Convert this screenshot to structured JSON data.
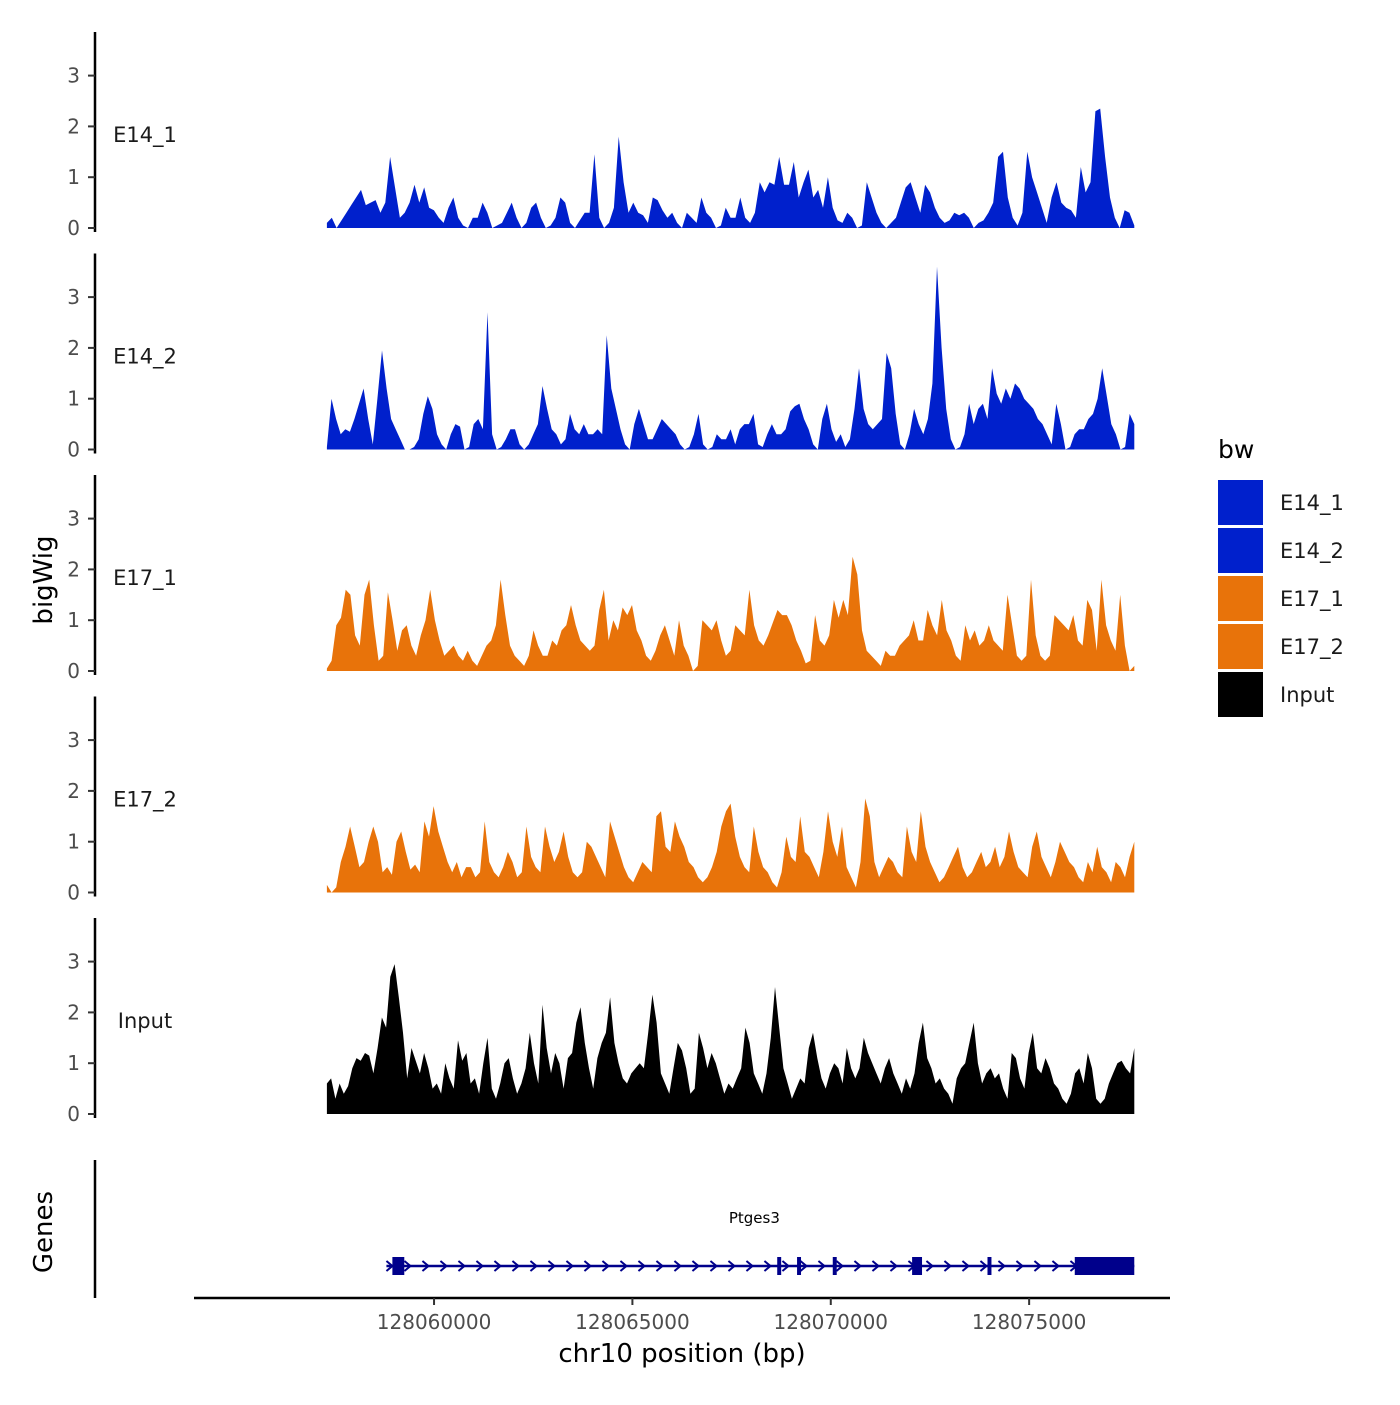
{
  "chart_data": {
    "type": "area",
    "title": "",
    "xlabel": "chr10 position (bp)",
    "ylabel": "bigWig",
    "genes_label": "Genes",
    "xlim": [
      128054000,
      128078500
    ],
    "ylim": [
      0,
      3.8
    ],
    "y_ticks": [
      "0",
      "1",
      "2",
      "3"
    ],
    "x_ticks": [
      {
        "value": 128060000,
        "label": "128060000"
      },
      {
        "value": 128065000,
        "label": "128065000"
      },
      {
        "value": 128070000,
        "label": "128070000"
      },
      {
        "value": 128075000,
        "label": "128075000"
      }
    ],
    "x_start": 128057300,
    "x_end": 128077650,
    "legend": {
      "title": "bw",
      "entries": [
        {
          "label": "E14_1",
          "color": "#0020cc"
        },
        {
          "label": "E14_2",
          "color": "#0020cc"
        },
        {
          "label": "E17_1",
          "color": "#e8730a"
        },
        {
          "label": "E17_2",
          "color": "#e8730a"
        },
        {
          "label": "Input",
          "color": "#000000"
        }
      ]
    },
    "series": [
      {
        "name": "E14_1",
        "color": "#0020cc",
        "values": [
          0.1,
          0.2,
          0,
          0.15,
          0.3,
          0.45,
          0.6,
          0.75,
          0.45,
          0.5,
          0.55,
          0.3,
          0.5,
          1.4,
          0.8,
          0.2,
          0.3,
          0.5,
          0.85,
          0.5,
          0.8,
          0.4,
          0.35,
          0.2,
          0.1,
          0.4,
          0.6,
          0.2,
          0.05,
          0,
          0.2,
          0.2,
          0.5,
          0.3,
          0,
          0.05,
          0.1,
          0.3,
          0.5,
          0.2,
          0,
          0.1,
          0.4,
          0.5,
          0.2,
          0,
          0.05,
          0.2,
          0.6,
          0.5,
          0.1,
          0,
          0.15,
          0.3,
          0.3,
          1.45,
          0.2,
          0,
          0.1,
          0.4,
          1.8,
          0.9,
          0.3,
          0.5,
          0.3,
          0.25,
          0.1,
          0.6,
          0.55,
          0.35,
          0.2,
          0.3,
          0.1,
          0,
          0.3,
          0.2,
          0.1,
          0.6,
          0.3,
          0.2,
          0,
          0.05,
          0.4,
          0.2,
          0.2,
          0.6,
          0.2,
          0.1,
          0.3,
          0.9,
          0.7,
          0.9,
          0.85,
          1.4,
          0.85,
          0.85,
          1.3,
          0.6,
          0.9,
          1.15,
          0.6,
          0.75,
          0.4,
          1.0,
          0.4,
          0.15,
          0.1,
          0.3,
          0.2,
          0,
          0.05,
          0.9,
          0.6,
          0.3,
          0.1,
          0,
          0.1,
          0.2,
          0.5,
          0.8,
          0.9,
          0.6,
          0.3,
          0.85,
          0.7,
          0.4,
          0.2,
          0.1,
          0.15,
          0.3,
          0.25,
          0.3,
          0.2,
          0,
          0.1,
          0.15,
          0.3,
          0.5,
          1.4,
          1.5,
          0.6,
          0.2,
          0.05,
          0.3,
          1.5,
          1.0,
          0.7,
          0.4,
          0.1,
          0.6,
          0.9,
          0.5,
          0.4,
          0.35,
          0.2,
          1.2,
          0.7,
          0.9,
          2.3,
          2.35,
          1.4,
          0.6,
          0.2,
          0,
          0.35,
          0.3,
          0.05
        ]
      },
      {
        "name": "E14_2",
        "color": "#0020cc",
        "values": [
          0.05,
          1.0,
          0.6,
          0.3,
          0.4,
          0.35,
          0.6,
          0.9,
          1.2,
          0.6,
          0.1,
          1.0,
          1.95,
          1.2,
          0.6,
          0.4,
          0.2,
          0,
          0,
          0.05,
          0.2,
          0.7,
          1.05,
          0.8,
          0.3,
          0.1,
          0,
          0.3,
          0.5,
          0.45,
          0,
          0.05,
          0.5,
          0.6,
          0.4,
          2.7,
          0.3,
          0,
          0.05,
          0.2,
          0.4,
          0.4,
          0.1,
          0,
          0.1,
          0.3,
          0.5,
          1.25,
          0.8,
          0.4,
          0.3,
          0.1,
          0.2,
          0.7,
          0.4,
          0.3,
          0.5,
          0.3,
          0.3,
          0.4,
          0.3,
          2.25,
          1.2,
          0.8,
          0.4,
          0.1,
          0,
          0.5,
          0.8,
          0.5,
          0.2,
          0.2,
          0.4,
          0.6,
          0.5,
          0.4,
          0.3,
          0.1,
          0,
          0.05,
          0.3,
          0.7,
          0.1,
          0,
          0.05,
          0.3,
          0.2,
          0.2,
          0.4,
          0.1,
          0.4,
          0.5,
          0.5,
          0.7,
          0.1,
          0.05,
          0.3,
          0.5,
          0.3,
          0.3,
          0.4,
          0.75,
          0.85,
          0.9,
          0.6,
          0.4,
          0.1,
          0,
          0.6,
          0.9,
          0.4,
          0.15,
          0.3,
          0.05,
          0.2,
          0.8,
          1.6,
          0.8,
          0.5,
          0.4,
          0.5,
          0.6,
          1.9,
          1.6,
          0.7,
          0.1,
          0,
          0.3,
          0.8,
          0.5,
          0.3,
          0.6,
          1.3,
          3.6,
          2.0,
          0.8,
          0.2,
          0,
          0.05,
          0.3,
          0.9,
          0.5,
          0.8,
          0.9,
          0.6,
          1.6,
          1.1,
          0.9,
          1.2,
          1.0,
          1.3,
          1.2,
          1.0,
          0.9,
          0.8,
          0.6,
          0.5,
          0.3,
          0.1,
          0.9,
          0.5,
          0,
          0.05,
          0.3,
          0.4,
          0.4,
          0.6,
          0.7,
          1.0,
          1.6,
          1.05,
          0.5,
          0.3,
          0,
          0.05,
          0.7,
          0.5
        ]
      },
      {
        "name": "E17_1",
        "color": "#e8730a",
        "values": [
          0.05,
          0.2,
          0.9,
          1.05,
          1.6,
          1.5,
          0.7,
          0.5,
          1.5,
          1.8,
          0.9,
          0.2,
          0.3,
          1.55,
          1.0,
          0.4,
          0.8,
          0.9,
          0.5,
          0.3,
          0.7,
          1.0,
          1.6,
          1.0,
          0.6,
          0.3,
          0.4,
          0.5,
          0.3,
          0.2,
          0.4,
          0.2,
          0.1,
          0.3,
          0.5,
          0.6,
          0.9,
          1.8,
          1.1,
          0.5,
          0.3,
          0.2,
          0.1,
          0.3,
          0.8,
          0.5,
          0.3,
          0.3,
          0.6,
          0.5,
          0.8,
          0.9,
          1.3,
          0.9,
          0.6,
          0.5,
          0.4,
          0.5,
          1.2,
          1.6,
          0.6,
          1.0,
          0.8,
          1.25,
          1.1,
          1.3,
          0.8,
          0.6,
          0.3,
          0.2,
          0.4,
          0.7,
          0.9,
          0.6,
          0.3,
          1.0,
          0.5,
          0.3,
          0,
          0.1,
          1.0,
          0.9,
          0.8,
          1.0,
          0.6,
          0.3,
          0.4,
          0.9,
          0.8,
          0.7,
          1.6,
          0.9,
          0.6,
          0.5,
          0.7,
          0.95,
          1.2,
          1.1,
          1.1,
          0.9,
          0.6,
          0.4,
          0.15,
          0.2,
          1.1,
          0.6,
          0.5,
          0.7,
          1.4,
          1.05,
          1.4,
          1.1,
          2.25,
          1.9,
          0.8,
          0.4,
          0.3,
          0.2,
          0.1,
          0.4,
          0.3,
          0.3,
          0.5,
          0.6,
          0.7,
          1.0,
          0.6,
          0.6,
          1.2,
          0.9,
          0.7,
          1.4,
          0.8,
          0.6,
          0.3,
          0.2,
          0.9,
          0.6,
          0.8,
          0.5,
          0.6,
          0.9,
          0.6,
          0.5,
          0.4,
          1.5,
          0.9,
          0.3,
          0.2,
          0.3,
          1.8,
          0.7,
          0.3,
          0.2,
          0.3,
          1.1,
          1.0,
          0.9,
          0.8,
          1.1,
          0.6,
          0.5,
          1.4,
          1.2,
          0.4,
          1.8,
          0.9,
          0.6,
          0.4,
          1.5,
          0.5,
          0,
          0.1
        ]
      },
      {
        "name": "E17_2",
        "color": "#e8730a",
        "values": [
          0.15,
          0,
          0.1,
          0.6,
          0.9,
          1.3,
          0.9,
          0.5,
          0.6,
          1.0,
          1.3,
          1.0,
          0.4,
          0.5,
          0.35,
          1.0,
          1.2,
          0.8,
          0.45,
          0.55,
          0.4,
          1.4,
          1.1,
          1.7,
          1.2,
          0.9,
          0.6,
          0.4,
          0.6,
          0.3,
          0.5,
          0.5,
          0.3,
          0.4,
          1.4,
          0.6,
          0.4,
          0.3,
          0.5,
          0.8,
          0.6,
          0.3,
          0.4,
          1.3,
          0.7,
          0.5,
          0.4,
          1.3,
          0.9,
          0.6,
          0.8,
          1.2,
          0.7,
          0.4,
          0.3,
          0.4,
          1.0,
          0.9,
          0.7,
          0.5,
          0.3,
          1.4,
          1.1,
          0.8,
          0.5,
          0.3,
          0.2,
          0.4,
          0.6,
          0.5,
          0.4,
          1.5,
          1.6,
          0.9,
          0.8,
          1.4,
          1.1,
          0.9,
          0.6,
          0.5,
          0.3,
          0.2,
          0.3,
          0.5,
          0.8,
          1.3,
          1.6,
          1.75,
          1.1,
          0.7,
          0.5,
          0.4,
          1.3,
          0.8,
          0.5,
          0.4,
          0.2,
          0.1,
          0.4,
          1.1,
          0.7,
          0.6,
          1.5,
          0.8,
          0.7,
          0.5,
          0.3,
          0.8,
          1.6,
          1.0,
          0.7,
          1.3,
          0.5,
          0.3,
          0.1,
          0.6,
          1.85,
          1.5,
          0.6,
          0.3,
          0.5,
          0.7,
          0.6,
          0.4,
          0.3,
          1.3,
          0.8,
          0.6,
          1.6,
          0.9,
          0.6,
          0.4,
          0.2,
          0.3,
          0.5,
          0.7,
          0.9,
          0.5,
          0.3,
          0.4,
          0.6,
          0.8,
          0.5,
          0.6,
          0.9,
          0.5,
          0.7,
          1.2,
          0.8,
          0.5,
          0.4,
          0.3,
          0.9,
          1.2,
          0.7,
          0.5,
          0.3,
          0.6,
          1.0,
          0.8,
          0.6,
          0.5,
          0.3,
          0.2,
          0.6,
          0.4,
          0.9,
          0.5,
          0.4,
          0.2,
          0.6,
          0.5,
          0.3,
          0.7,
          1.0
        ]
      },
      {
        "name": "Input",
        "color": "#000000",
        "values": [
          0.6,
          0.7,
          0.3,
          0.6,
          0.4,
          0.55,
          0.9,
          1.1,
          1.05,
          1.2,
          1.15,
          0.8,
          1.3,
          1.9,
          1.7,
          2.7,
          2.95,
          2.3,
          1.6,
          0.7,
          1.3,
          1.05,
          0.8,
          1.2,
          0.9,
          0.5,
          0.6,
          0.4,
          1.0,
          0.7,
          0.5,
          1.45,
          1.05,
          1.2,
          0.6,
          0.7,
          0.4,
          1.0,
          1.5,
          0.5,
          0.3,
          0.6,
          1.0,
          1.1,
          0.7,
          0.4,
          0.6,
          0.9,
          1.6,
          1.0,
          0.6,
          2.15,
          1.3,
          0.8,
          1.2,
          1.0,
          0.5,
          1.1,
          1.2,
          1.8,
          2.1,
          1.4,
          0.9,
          0.5,
          1.1,
          1.4,
          1.6,
          2.3,
          1.4,
          1.0,
          0.7,
          0.6,
          0.8,
          0.9,
          1.0,
          0.9,
          1.6,
          2.35,
          1.8,
          0.8,
          0.6,
          0.4,
          0.9,
          1.4,
          1.25,
          0.9,
          0.4,
          0.5,
          1.6,
          1.3,
          0.9,
          1.2,
          1.0,
          0.7,
          0.4,
          0.6,
          0.5,
          0.7,
          0.9,
          1.7,
          1.4,
          0.8,
          0.6,
          0.4,
          0.8,
          1.5,
          2.5,
          1.7,
          0.9,
          0.6,
          0.3,
          0.5,
          0.7,
          0.6,
          1.3,
          1.6,
          1.1,
          0.7,
          0.5,
          0.8,
          1.0,
          0.9,
          0.6,
          1.3,
          0.9,
          0.7,
          0.9,
          1.5,
          1.2,
          1.0,
          0.8,
          0.6,
          0.9,
          1.1,
          0.8,
          0.6,
          0.4,
          0.7,
          0.5,
          0.8,
          1.4,
          1.8,
          1.1,
          0.9,
          0.6,
          0.7,
          0.5,
          0.4,
          0.2,
          0.7,
          0.9,
          1.0,
          1.4,
          1.8,
          1.0,
          0.6,
          0.8,
          0.9,
          0.7,
          0.8,
          0.5,
          0.3,
          1.2,
          1.1,
          0.7,
          0.5,
          1.2,
          1.6,
          0.9,
          0.8,
          1.1,
          0.9,
          0.6,
          0.5,
          0.3,
          0.2,
          0.4,
          0.8,
          0.9,
          0.6,
          1.2,
          0.9,
          0.3,
          0.2,
          0.3,
          0.6,
          0.8,
          1.0,
          1.05,
          0.9,
          0.8,
          1.3
        ]
      }
    ],
    "gene": {
      "name": "Ptges3",
      "color": "#00008b",
      "start": 128058800,
      "end": 128077650,
      "strand": "+",
      "exons": [
        [
          128058950,
          128059250
        ],
        [
          128068650,
          128068750
        ],
        [
          128069150,
          128069250
        ],
        [
          128070050,
          128070150
        ],
        [
          128072050,
          128072300
        ],
        [
          128073950,
          128074050
        ],
        [
          128076150,
          128077650
        ]
      ]
    }
  }
}
